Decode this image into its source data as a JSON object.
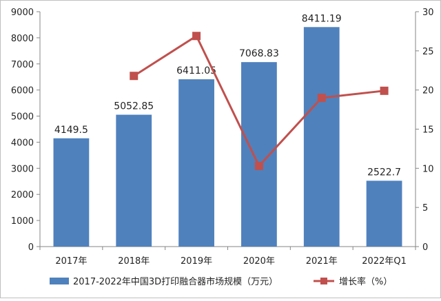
{
  "chart_data": {
    "type": "bar",
    "categories": [
      "2017年",
      "2018年",
      "2019年",
      "2020年",
      "2021年",
      "2022年Q1"
    ],
    "series": [
      {
        "name": "2017-2022年中国3D打印融合器市场规模（万元）",
        "type": "bar",
        "axis": "left",
        "values": [
          4149.5,
          5052.85,
          6411.05,
          7068.83,
          8411.19,
          2522.7
        ],
        "labels": [
          "4149.5",
          "5052.85",
          "6411.05",
          "7068.83",
          "8411.19",
          "2522.7"
        ],
        "color": "#4f81bd"
      },
      {
        "name": "增长率（%）",
        "type": "line",
        "axis": "right",
        "values": [
          null,
          21.8,
          26.9,
          10.3,
          19.0,
          19.9
        ],
        "color": "#c0504d"
      }
    ],
    "y_left": {
      "ylim": [
        0,
        9000
      ],
      "ticks": [
        "0",
        "1000",
        "2000",
        "3000",
        "4000",
        "5000",
        "6000",
        "7000",
        "8000",
        "9000"
      ]
    },
    "y_right": {
      "ylim": [
        0,
        30
      ],
      "ticks": [
        "0",
        "5",
        "10",
        "15",
        "20",
        "25",
        "30"
      ]
    },
    "grid": false,
    "legend": "bottom"
  }
}
